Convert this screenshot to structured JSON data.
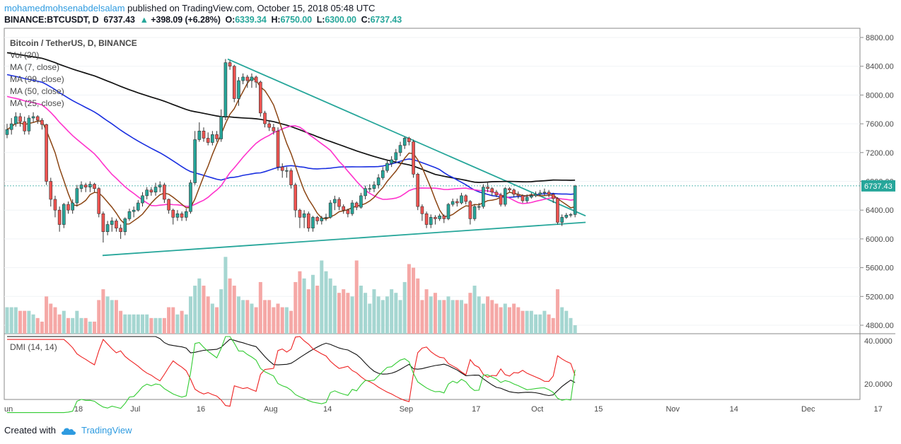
{
  "header": {
    "author": "mohamedmohsenabdelsalam",
    "published": "published on TradingView.com, October 15, 2018 05:48 UTC",
    "symbol": "BINANCE:BTCUSDT, D",
    "price": "6737.43",
    "change_arrow": "▲",
    "change": "+398.09 (+6.28%)",
    "o_label": "O:",
    "o": "6339.34",
    "h_label": "H:",
    "h": "6750.00",
    "l_label": "L:",
    "l": "6300.00",
    "c_label": "C:",
    "c": "6737.43"
  },
  "footer": {
    "created_with": "Created with",
    "brand": "TradingView",
    "logo_icon": "tradingview-cloud-icon"
  },
  "colors": {
    "up": "#26a69a",
    "down": "#ef5350",
    "vol_up": "#a5d6d1",
    "vol_down": "#f5a8a6",
    "ma7": "#8b4513",
    "ma25": "#ff33cc",
    "ma50": "#1a2fe0",
    "ma99": "#111111",
    "trend": "#26a69a",
    "dmi_plus": "#33cc33",
    "dmi_minus": "#ee2222",
    "adx": "#111111"
  },
  "chart_data": {
    "type": "candlestick",
    "title": "Bitcoin / TetherUS, D, BINANCE",
    "legend": [
      "Vol (20)",
      "MA (7, close)",
      "MA (99, close)",
      "MA (50, close)",
      "MA (25, close)"
    ],
    "dmi_label": "DMI (14, 14)",
    "price_axis_ticks": [
      "8800.00",
      "8400.00",
      "8000.00",
      "7600.00",
      "7200.00",
      "6800.00",
      "6400.00",
      "6000.00",
      "5600.00",
      "5200.00",
      "4800.00"
    ],
    "dmi_axis_ticks": [
      "40.0000",
      "20.0000"
    ],
    "x_tick_labels": [
      "un",
      "18",
      "Jul",
      "16",
      "Aug",
      "14",
      "Sep",
      "17",
      "Oct",
      "15",
      "Nov",
      "14",
      "Dec",
      "17"
    ],
    "last_price_label": "6737.43",
    "ylim": [
      4700,
      8900
    ],
    "dates_start": "2018-06-01",
    "close": [
      7520,
      7600,
      7700,
      7630,
      7500,
      7680,
      7700,
      7650,
      7590,
      6800,
      6550,
      6400,
      6200,
      6480,
      6400,
      6500,
      6700,
      6750,
      6720,
      6760,
      6700,
      6350,
      6100,
      6200,
      6250,
      6150,
      6100,
      6280,
      6380,
      6400,
      6500,
      6600,
      6680,
      6650,
      6720,
      6750,
      6550,
      6400,
      6300,
      6350,
      6300,
      6380,
      6780,
      7380,
      7500,
      7400,
      7340,
      7450,
      7390,
      7700,
      8450,
      8400,
      7950,
      8200,
      8250,
      8200,
      8250,
      8180,
      7750,
      7600,
      7550,
      7500,
      7000,
      6950,
      6950,
      6750,
      6400,
      6300,
      6350,
      6150,
      6300,
      6250,
      6290,
      6300,
      6500,
      6550,
      6450,
      6400,
      6350,
      6500,
      6440,
      6600,
      6700,
      6700,
      6750,
      6850,
      6950,
      7050,
      7100,
      7200,
      7300,
      7400,
      7350,
      6900,
      6450,
      6350,
      6200,
      6300,
      6280,
      6320,
      6280,
      6480,
      6520,
      6500,
      6600,
      6520,
      6280,
      6450,
      6450,
      6720,
      6700,
      6650,
      6610,
      6480,
      6700,
      6680,
      6620,
      6600,
      6530,
      6580,
      6600,
      6620,
      6640,
      6650,
      6620,
      6560,
      6230,
      6300,
      6330,
      6339,
      6737
    ],
    "open": [
      7450,
      7520,
      7600,
      7700,
      7630,
      7500,
      7680,
      7700,
      7650,
      7590,
      6800,
      6550,
      6400,
      6200,
      6480,
      6400,
      6500,
      6700,
      6750,
      6720,
      6760,
      6700,
      6350,
      6100,
      6200,
      6250,
      6150,
      6100,
      6280,
      6380,
      6400,
      6500,
      6600,
      6680,
      6650,
      6720,
      6750,
      6550,
      6400,
      6300,
      6350,
      6300,
      6380,
      6780,
      7380,
      7500,
      7400,
      7340,
      7450,
      7390,
      7700,
      8450,
      8400,
      7950,
      8200,
      8250,
      8200,
      8250,
      8180,
      7750,
      7600,
      7550,
      7500,
      7000,
      6950,
      6950,
      6750,
      6400,
      6300,
      6350,
      6150,
      6300,
      6250,
      6290,
      6300,
      6500,
      6550,
      6450,
      6400,
      6350,
      6500,
      6440,
      6600,
      6700,
      6700,
      6750,
      6850,
      6950,
      7050,
      7100,
      7200,
      7300,
      7400,
      7350,
      6900,
      6450,
      6350,
      6200,
      6300,
      6280,
      6320,
      6280,
      6480,
      6520,
      6500,
      6600,
      6520,
      6280,
      6450,
      6450,
      6720,
      6700,
      6650,
      6610,
      6480,
      6700,
      6680,
      6620,
      6600,
      6530,
      6580,
      6600,
      6620,
      6640,
      6650,
      6620,
      6560,
      6230,
      6300,
      6330,
      6339
    ],
    "high": [
      7600,
      7680,
      7760,
      7750,
      7700,
      7720,
      7760,
      7720,
      7680,
      7600,
      6850,
      6600,
      6450,
      6500,
      6520,
      6550,
      6750,
      6800,
      6780,
      6800,
      6780,
      6720,
      6380,
      6250,
      6300,
      6280,
      6200,
      6300,
      6420,
      6450,
      6540,
      6650,
      6720,
      6720,
      6780,
      6800,
      6780,
      6560,
      6420,
      6400,
      6380,
      6420,
      6820,
      7500,
      7620,
      7550,
      7480,
      7500,
      7500,
      7800,
      8500,
      8480,
      8420,
      8250,
      8300,
      8280,
      8300,
      8270,
      8200,
      7780,
      7650,
      7600,
      7550,
      7050,
      7000,
      6980,
      6780,
      6420,
      6400,
      6380,
      6320,
      6320,
      6320,
      6350,
      6540,
      6600,
      6580,
      6480,
      6420,
      6540,
      6520,
      6640,
      6740,
      6760,
      6800,
      6900,
      7000,
      7100,
      7150,
      7250,
      7350,
      7420,
      7420,
      7380,
      6920,
      6480,
      6380,
      6340,
      6330,
      6350,
      6340,
      6500,
      6560,
      6560,
      6640,
      6620,
      6540,
      6480,
      6500,
      6760,
      6800,
      6720,
      6680,
      6640,
      6720,
      6720,
      6700,
      6660,
      6620,
      6620,
      6640,
      6660,
      6680,
      6700,
      6680,
      6640,
      6580,
      6340,
      6360,
      6360,
      6750
    ],
    "low": [
      7400,
      7450,
      7560,
      7560,
      7450,
      7450,
      7620,
      7600,
      7520,
      6750,
      6450,
      6300,
      6100,
      6150,
      6350,
      6350,
      6450,
      6650,
      6650,
      6650,
      6650,
      6300,
      5950,
      6050,
      6100,
      6100,
      6000,
      6050,
      6250,
      6300,
      6380,
      6450,
      6550,
      6600,
      6600,
      6650,
      6500,
      6350,
      6200,
      6250,
      6250,
      6250,
      6350,
      6750,
      7350,
      7350,
      7300,
      7300,
      7350,
      7350,
      7650,
      8350,
      7900,
      7850,
      8150,
      8100,
      8100,
      8100,
      7700,
      7550,
      7500,
      7450,
      6950,
      6850,
      6850,
      6700,
      6300,
      6150,
      6150,
      6100,
      6100,
      6200,
      6200,
      6250,
      6280,
      6400,
      6400,
      6350,
      6300,
      6320,
      6400,
      6420,
      6550,
      6650,
      6650,
      6700,
      6820,
      6920,
      7000,
      7050,
      7150,
      7250,
      7300,
      6850,
      6400,
      6250,
      6150,
      6150,
      6200,
      6250,
      6220,
      6260,
      6450,
      6450,
      6480,
      6480,
      6200,
      6250,
      6400,
      6420,
      6650,
      6600,
      6580,
      6450,
      6450,
      6650,
      6580,
      6560,
      6500,
      6500,
      6560,
      6580,
      6600,
      6600,
      6580,
      6500,
      6200,
      6180,
      6280,
      6300,
      6300
    ],
    "volume": [
      5050,
      5050,
      5050,
      5000,
      5000,
      5000,
      4950,
      4900,
      4850,
      5200,
      5100,
      5050,
      4950,
      5000,
      4900,
      4900,
      5000,
      4900,
      4900,
      4850,
      4850,
      5150,
      5300,
      5200,
      5150,
      5150,
      5000,
      4950,
      4950,
      4950,
      4950,
      4950,
      4950,
      4900,
      4900,
      4900,
      4900,
      5050,
      5050,
      4950,
      5000,
      4950,
      5200,
      5350,
      5450,
      5350,
      5200,
      5100,
      5050,
      5300,
      5750,
      5450,
      5350,
      5200,
      5150,
      5150,
      5100,
      5050,
      5400,
      5150,
      5150,
      5050,
      5100,
      5050,
      5050,
      5000,
      5400,
      5550,
      5450,
      5300,
      5500,
      5350,
      5700,
      5550,
      5450,
      5350,
      5250,
      5300,
      5250,
      5200,
      5700,
      5350,
      5250,
      5100,
      5300,
      5200,
      5150,
      5200,
      5300,
      5250,
      5150,
      5400,
      5650,
      5600,
      5450,
      5150,
      5300,
      5200,
      5250,
      5150,
      5150,
      5200,
      5150,
      5150,
      5150,
      5100,
      5250,
      5350,
      5200,
      5100,
      5200,
      5150,
      5100,
      5050,
      5100,
      5050,
      5100,
      5050,
      5000,
      5000,
      5000,
      4950,
      4950,
      5000,
      4950,
      4900,
      5300,
      5050,
      5000,
      4900,
      4800
    ]
  }
}
